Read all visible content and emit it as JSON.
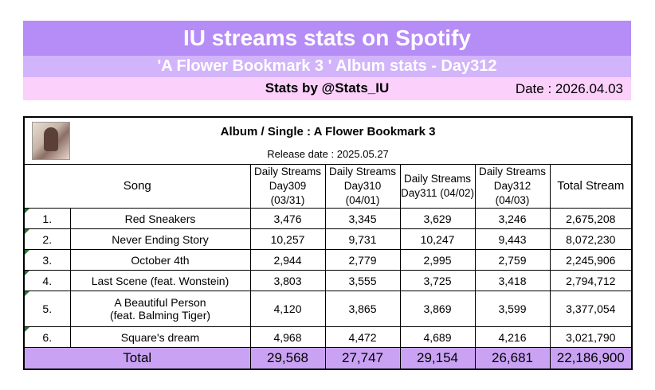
{
  "header": {
    "title": "IU streams stats on Spotify",
    "subtitle": "'A Flower Bookmark 3 ' Album stats - Day312",
    "credit": "Stats by @Stats_IU",
    "date": "Date : 2026.04.03"
  },
  "album": {
    "title": "Album / Single : A Flower Bookmark 3",
    "release": "Release date : 2025.05.27",
    "cover_icon": "album-cover-image"
  },
  "columns": {
    "song": "Song",
    "d1_a": "Daily Streams",
    "d1_b": "Day309 (03/31)",
    "d2_a": "Daily Streams",
    "d2_b": "Day310 (04/01)",
    "d3_a": "Daily Streams",
    "d3_b": "Day311 (04/02)",
    "d4_a": "Daily Streams",
    "d4_b": "Day312 (04/03)",
    "total": "Total Stream"
  },
  "rows": [
    {
      "no": "1.",
      "song": "Red Sneakers",
      "d1": "3,476",
      "d2": "3,345",
      "d3": "3,629",
      "d4": "3,246",
      "total": "2,675,208"
    },
    {
      "no": "2.",
      "song": "Never Ending Story",
      "d1": "10,257",
      "d2": "9,731",
      "d3": "10,247",
      "d4": "9,443",
      "total": "8,072,230"
    },
    {
      "no": "3.",
      "song": "October 4th",
      "d1": "2,944",
      "d2": "2,779",
      "d3": "2,995",
      "d4": "2,759",
      "total": "2,245,906"
    },
    {
      "no": "4.",
      "song": "Last Scene (feat. Wonstein)",
      "d1": "3,803",
      "d2": "3,555",
      "d3": "3,725",
      "d4": "3,418",
      "total": "2,794,712"
    },
    {
      "no": "5.",
      "song_a": "A Beautiful Person",
      "song_b": "(feat. Balming Tiger)",
      "d1": "4,120",
      "d2": "3,865",
      "d3": "3,869",
      "d4": "3,599",
      "total": "3,377,054"
    },
    {
      "no": "6.",
      "song": "Square's dream",
      "d1": "4,968",
      "d2": "4,472",
      "d3": "4,689",
      "d4": "4,216",
      "total": "3,021,790"
    }
  ],
  "totals": {
    "label": "Total",
    "d1": "29,568",
    "d2": "27,747",
    "d3": "29,154",
    "d4": "26,681",
    "total": "22,186,900"
  },
  "colors": {
    "title_bar": "#b68cf6",
    "subtitle_bar": "#d2b4fb",
    "credit_bar": "#fbd0fb",
    "total_row": "#c9a2f4",
    "row_flag": "#1d7a2c"
  }
}
